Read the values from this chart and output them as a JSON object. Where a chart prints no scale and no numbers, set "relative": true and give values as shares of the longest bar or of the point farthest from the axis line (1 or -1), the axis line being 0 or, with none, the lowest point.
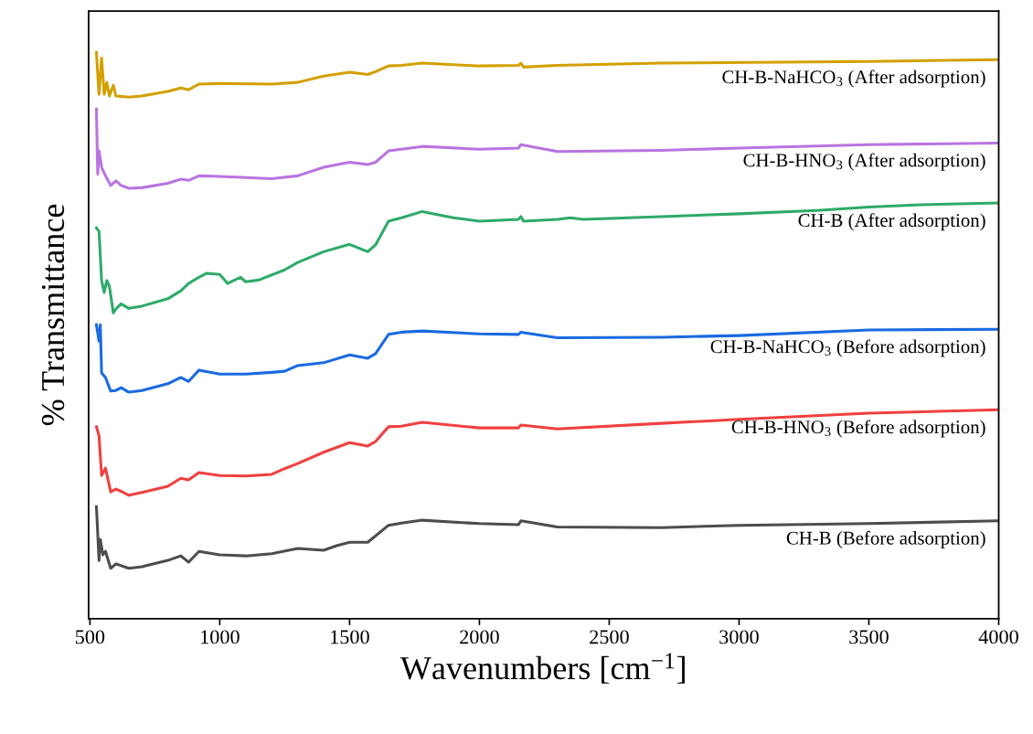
{
  "chart_data": {
    "type": "line",
    "relative": true,
    "xlabel": "Wavenumbers [cm$^{−1}$]",
    "ylabel": "% Transmittance",
    "xlim": [
      495,
      4000
    ],
    "xticks": [
      500,
      1000,
      1500,
      2000,
      2500,
      3000,
      3500,
      4000
    ],
    "series": [
      {
        "name": "CH-B-NaHCO$_{3}$ (After adsorption)",
        "color": "#d4a000",
        "x": [
          525,
          535,
          545,
          555,
          565,
          575,
          590,
          600,
          650,
          700,
          800,
          850,
          880,
          920,
          1000,
          1200,
          1300,
          1400,
          1500,
          1570,
          1600,
          1650,
          1700,
          1780,
          2000,
          2150,
          2160,
          2170,
          2300,
          2700,
          3500,
          4000
        ],
        "values": [
          1.0,
          0.926,
          0.99,
          0.926,
          0.947,
          0.923,
          0.942,
          0.923,
          0.921,
          0.923,
          0.931,
          0.937,
          0.934,
          0.944,
          0.945,
          0.944,
          0.947,
          0.958,
          0.965,
          0.961,
          0.966,
          0.976,
          0.977,
          0.981,
          0.976,
          0.977,
          0.981,
          0.974,
          0.977,
          0.981,
          0.984,
          0.987
        ]
      },
      {
        "name": "CH-B-HNO$_{3}$ (After adsorption)",
        "color": "#b974e0",
        "x": [
          525,
          530,
          535,
          545,
          560,
          580,
          600,
          620,
          650,
          700,
          800,
          850,
          880,
          920,
          1000,
          1100,
          1200,
          1300,
          1400,
          1500,
          1570,
          1600,
          1650,
          1700,
          1780,
          2000,
          2150,
          2160,
          2300,
          2700,
          3000,
          3500,
          4000
        ],
        "values": [
          0.9,
          0.785,
          0.826,
          0.797,
          0.782,
          0.765,
          0.773,
          0.765,
          0.76,
          0.761,
          0.769,
          0.776,
          0.774,
          0.782,
          0.781,
          0.779,
          0.777,
          0.782,
          0.797,
          0.806,
          0.802,
          0.806,
          0.826,
          0.829,
          0.834,
          0.829,
          0.831,
          0.837,
          0.825,
          0.827,
          0.831,
          0.837,
          0.84
        ]
      },
      {
        "name": "CH-B (After adsorption)",
        "color": "#2eaa6a",
        "x": [
          525,
          535,
          545,
          555,
          565,
          575,
          590,
          600,
          620,
          650,
          700,
          800,
          850,
          880,
          920,
          950,
          1000,
          1030,
          1080,
          1100,
          1150,
          1250,
          1300,
          1400,
          1500,
          1570,
          1600,
          1650,
          1700,
          1780,
          1900,
          2000,
          2150,
          2160,
          2170,
          2300,
          2350,
          2400,
          2700,
          3000,
          3300,
          3500,
          3700,
          4000
        ],
        "values": [
          0.69,
          0.684,
          0.597,
          0.576,
          0.597,
          0.587,
          0.54,
          0.547,
          0.556,
          0.548,
          0.552,
          0.565,
          0.579,
          0.592,
          0.603,
          0.61,
          0.608,
          0.592,
          0.603,
          0.595,
          0.598,
          0.616,
          0.629,
          0.648,
          0.661,
          0.648,
          0.66,
          0.702,
          0.708,
          0.719,
          0.708,
          0.702,
          0.705,
          0.71,
          0.702,
          0.705,
          0.708,
          0.705,
          0.71,
          0.715,
          0.721,
          0.727,
          0.731,
          0.734
        ]
      },
      {
        "name": "CH-B-NaHCO$_{3}$ (Before adsorption)",
        "color": "#1a6ae0",
        "x": [
          525,
          535,
          540,
          545,
          560,
          580,
          600,
          620,
          650,
          700,
          800,
          850,
          880,
          920,
          1000,
          1100,
          1200,
          1250,
          1300,
          1400,
          1500,
          1570,
          1600,
          1650,
          1700,
          1780,
          2000,
          2150,
          2160,
          2300,
          2700,
          3000,
          3500,
          4000
        ],
        "values": [
          0.519,
          0.49,
          0.519,
          0.434,
          0.426,
          0.402,
          0.403,
          0.408,
          0.4,
          0.403,
          0.415,
          0.426,
          0.419,
          0.439,
          0.432,
          0.432,
          0.435,
          0.437,
          0.447,
          0.452,
          0.466,
          0.46,
          0.468,
          0.502,
          0.506,
          0.508,
          0.503,
          0.502,
          0.506,
          0.496,
          0.497,
          0.5,
          0.51,
          0.511
        ]
      },
      {
        "name": "CH-B-HNO$_{3}$ (Before adsorption)",
        "color": "#f04040",
        "x": [
          525,
          535,
          545,
          560,
          580,
          600,
          620,
          650,
          700,
          800,
          850,
          880,
          920,
          1000,
          1100,
          1200,
          1250,
          1300,
          1400,
          1500,
          1570,
          1600,
          1650,
          1700,
          1780,
          2000,
          2150,
          2160,
          2300,
          2700,
          3000,
          3500,
          4000
        ],
        "values": [
          0.339,
          0.323,
          0.253,
          0.266,
          0.224,
          0.229,
          0.225,
          0.218,
          0.223,
          0.234,
          0.248,
          0.245,
          0.258,
          0.253,
          0.252,
          0.255,
          0.265,
          0.274,
          0.294,
          0.311,
          0.305,
          0.313,
          0.339,
          0.34,
          0.347,
          0.337,
          0.337,
          0.342,
          0.335,
          0.345,
          0.352,
          0.363,
          0.369
        ]
      },
      {
        "name": "CH-B (Before adsorption)",
        "color": "#4d4d4d",
        "x": [
          525,
          535,
          540,
          550,
          560,
          580,
          600,
          650,
          700,
          800,
          850,
          880,
          920,
          1000,
          1100,
          1200,
          1300,
          1400,
          1450,
          1500,
          1570,
          1650,
          1700,
          1780,
          2000,
          2150,
          2160,
          2300,
          2700,
          3000,
          3500,
          4000
        ],
        "values": [
          0.198,
          0.103,
          0.14,
          0.113,
          0.119,
          0.089,
          0.097,
          0.089,
          0.092,
          0.103,
          0.111,
          0.1,
          0.119,
          0.113,
          0.111,
          0.115,
          0.124,
          0.121,
          0.129,
          0.135,
          0.135,
          0.165,
          0.169,
          0.174,
          0.168,
          0.166,
          0.173,
          0.162,
          0.161,
          0.165,
          0.168,
          0.173
        ]
      }
    ]
  }
}
